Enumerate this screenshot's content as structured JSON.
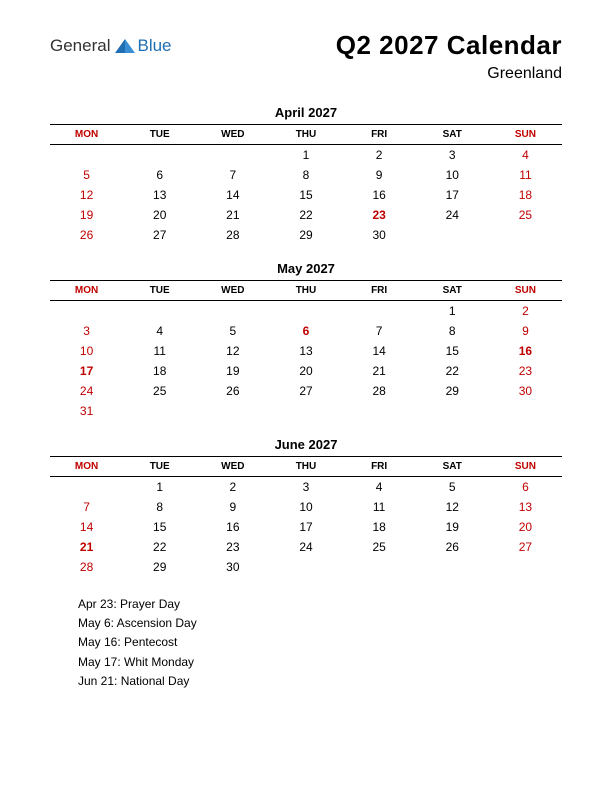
{
  "logo": {
    "general": "General",
    "blue": "Blue"
  },
  "title": "Q2 2027 Calendar",
  "subtitle": "Greenland",
  "colors": {
    "weekend": "#c00000",
    "text": "#000000",
    "logo_blue": "#1f6fb2",
    "background": "#ffffff"
  },
  "day_headers": [
    "MON",
    "TUE",
    "WED",
    "THU",
    "FRI",
    "SAT",
    "SUN"
  ],
  "months": [
    {
      "name": "April 2027",
      "weeks": [
        [
          "",
          "",
          "",
          "1",
          "2",
          "3",
          "4"
        ],
        [
          "5",
          "6",
          "7",
          "8",
          "9",
          "10",
          "11"
        ],
        [
          "12",
          "13",
          "14",
          "15",
          "16",
          "17",
          "18"
        ],
        [
          "19",
          "20",
          "21",
          "22",
          "23",
          "24",
          "25"
        ],
        [
          "26",
          "27",
          "28",
          "29",
          "30",
          "",
          ""
        ]
      ],
      "holidays": [
        "23"
      ]
    },
    {
      "name": "May 2027",
      "weeks": [
        [
          "",
          "",
          "",
          "",
          "",
          "1",
          "2"
        ],
        [
          "3",
          "4",
          "5",
          "6",
          "7",
          "8",
          "9"
        ],
        [
          "10",
          "11",
          "12",
          "13",
          "14",
          "15",
          "16"
        ],
        [
          "17",
          "18",
          "19",
          "20",
          "21",
          "22",
          "23"
        ],
        [
          "24",
          "25",
          "26",
          "27",
          "28",
          "29",
          "30"
        ],
        [
          "31",
          "",
          "",
          "",
          "",
          "",
          ""
        ]
      ],
      "holidays": [
        "6",
        "16",
        "17"
      ]
    },
    {
      "name": "June 2027",
      "weeks": [
        [
          "",
          "1",
          "2",
          "3",
          "4",
          "5",
          "6"
        ],
        [
          "7",
          "8",
          "9",
          "10",
          "11",
          "12",
          "13"
        ],
        [
          "14",
          "15",
          "16",
          "17",
          "18",
          "19",
          "20"
        ],
        [
          "21",
          "22",
          "23",
          "24",
          "25",
          "26",
          "27"
        ],
        [
          "28",
          "29",
          "30",
          "",
          "",
          "",
          ""
        ]
      ],
      "holidays": [
        "21"
      ]
    }
  ],
  "holiday_list": [
    "Apr 23: Prayer Day",
    "May 6: Ascension Day",
    "May 16: Pentecost",
    "May 17: Whit Monday",
    "Jun 21: National Day"
  ]
}
